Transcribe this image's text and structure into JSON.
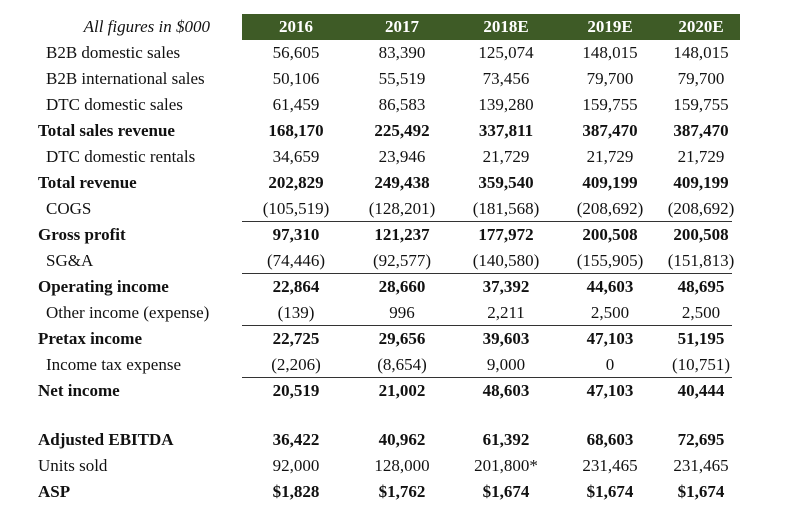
{
  "header": {
    "label": "All figures in $000",
    "years": [
      "2016",
      "2017",
      "2018E",
      "2019E",
      "2020E"
    ]
  },
  "rows": [
    {
      "label": "B2B domestic sales",
      "values": [
        "56,605",
        "83,390",
        "125,074",
        "148,015",
        "148,015"
      ],
      "bold": false
    },
    {
      "label": "B2B international sales",
      "values": [
        "50,106",
        "55,519",
        "73,456",
        "79,700",
        "79,700"
      ],
      "bold": false
    },
    {
      "label": "DTC domestic sales",
      "values": [
        "61,459",
        "86,583",
        "139,280",
        "159,755",
        "159,755"
      ],
      "bold": false
    },
    {
      "label": "Total sales revenue",
      "values": [
        "168,170",
        "225,492",
        "337,811",
        "387,470",
        "387,470"
      ],
      "bold": true
    },
    {
      "label": "DTC domestic rentals",
      "values": [
        "34,659",
        "23,946",
        "21,729",
        "21,729",
        "21,729"
      ],
      "bold": false
    },
    {
      "label": "Total revenue",
      "values": [
        "202,829",
        "249,438",
        "359,540",
        "409,199",
        "409,199"
      ],
      "bold": true
    },
    {
      "label": "COGS",
      "values": [
        "(105,519)",
        "(128,201)",
        "(181,568)",
        "(208,692)",
        "(208,692)"
      ],
      "bold": false,
      "rule": true
    },
    {
      "label": "Gross profit",
      "values": [
        "97,310",
        "121,237",
        "177,972",
        "200,508",
        "200,508"
      ],
      "bold": true
    },
    {
      "label": "SG&A",
      "values": [
        "(74,446)",
        "(92,577)",
        "(140,580)",
        "(155,905)",
        "(151,813)"
      ],
      "bold": false,
      "rule": true
    },
    {
      "label": "Operating income",
      "values": [
        "22,864",
        "28,660",
        "37,392",
        "44,603",
        "48,695"
      ],
      "bold": true
    },
    {
      "label": "Other income (expense)",
      "values": [
        "(139)",
        "996",
        "2,211",
        "2,500",
        "2,500"
      ],
      "bold": false,
      "rule": true
    },
    {
      "label": "Pretax income",
      "values": [
        "22,725",
        "29,656",
        "39,603",
        "47,103",
        "51,195"
      ],
      "bold": true
    },
    {
      "label": "Income tax expense",
      "values": [
        "(2,206)",
        "(8,654)",
        "9,000",
        "0",
        "(10,751)"
      ],
      "bold": false,
      "rule": true
    },
    {
      "label": "Net income",
      "values": [
        "20,519",
        "21,002",
        "48,603",
        "47,103",
        "40,444"
      ],
      "bold": true
    },
    {
      "label": "Adjusted EBITDA",
      "values": [
        "36,422",
        "40,962",
        "61,392",
        "68,603",
        "72,695"
      ],
      "bold": true,
      "gap": true
    },
    {
      "label": "Units sold",
      "values": [
        "92,000",
        "128,000",
        "201,800*",
        "231,465",
        "231,465"
      ],
      "bold": false,
      "flush": true
    },
    {
      "label": "ASP",
      "values": [
        "$1,828",
        "$1,762",
        "$1,674",
        "$1,674",
        "$1,674"
      ],
      "bold": true
    }
  ],
  "colors": {
    "header_bg": "#3e5b26"
  }
}
